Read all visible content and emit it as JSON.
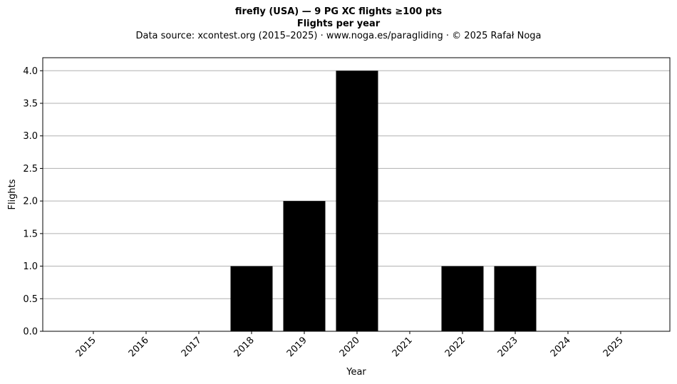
{
  "header": {
    "title": "firefly (USA)  —  9 PG XC flights ≥100 pts",
    "subtitle": "Flights per year",
    "source": "Data source: xcontest.org (2015–2025)  ·  www.noga.es/paragliding  ·  © 2025 Rafał Noga"
  },
  "chart_data": {
    "type": "bar",
    "categories": [
      "2015",
      "2016",
      "2017",
      "2018",
      "2019",
      "2020",
      "2021",
      "2022",
      "2023",
      "2024",
      "2025"
    ],
    "values": [
      0,
      0,
      0,
      1,
      2,
      4,
      0,
      1,
      1,
      0,
      0
    ],
    "xlabel": "Year",
    "ylabel": "Flights",
    "ylim": [
      0,
      4.2
    ],
    "yticks": [
      "0.0",
      "0.5",
      "1.0",
      "1.5",
      "2.0",
      "2.5",
      "3.0",
      "3.5",
      "4.0"
    ],
    "grid": "y",
    "bar_color": "#000000",
    "grid_color": "#b0b0b0"
  }
}
